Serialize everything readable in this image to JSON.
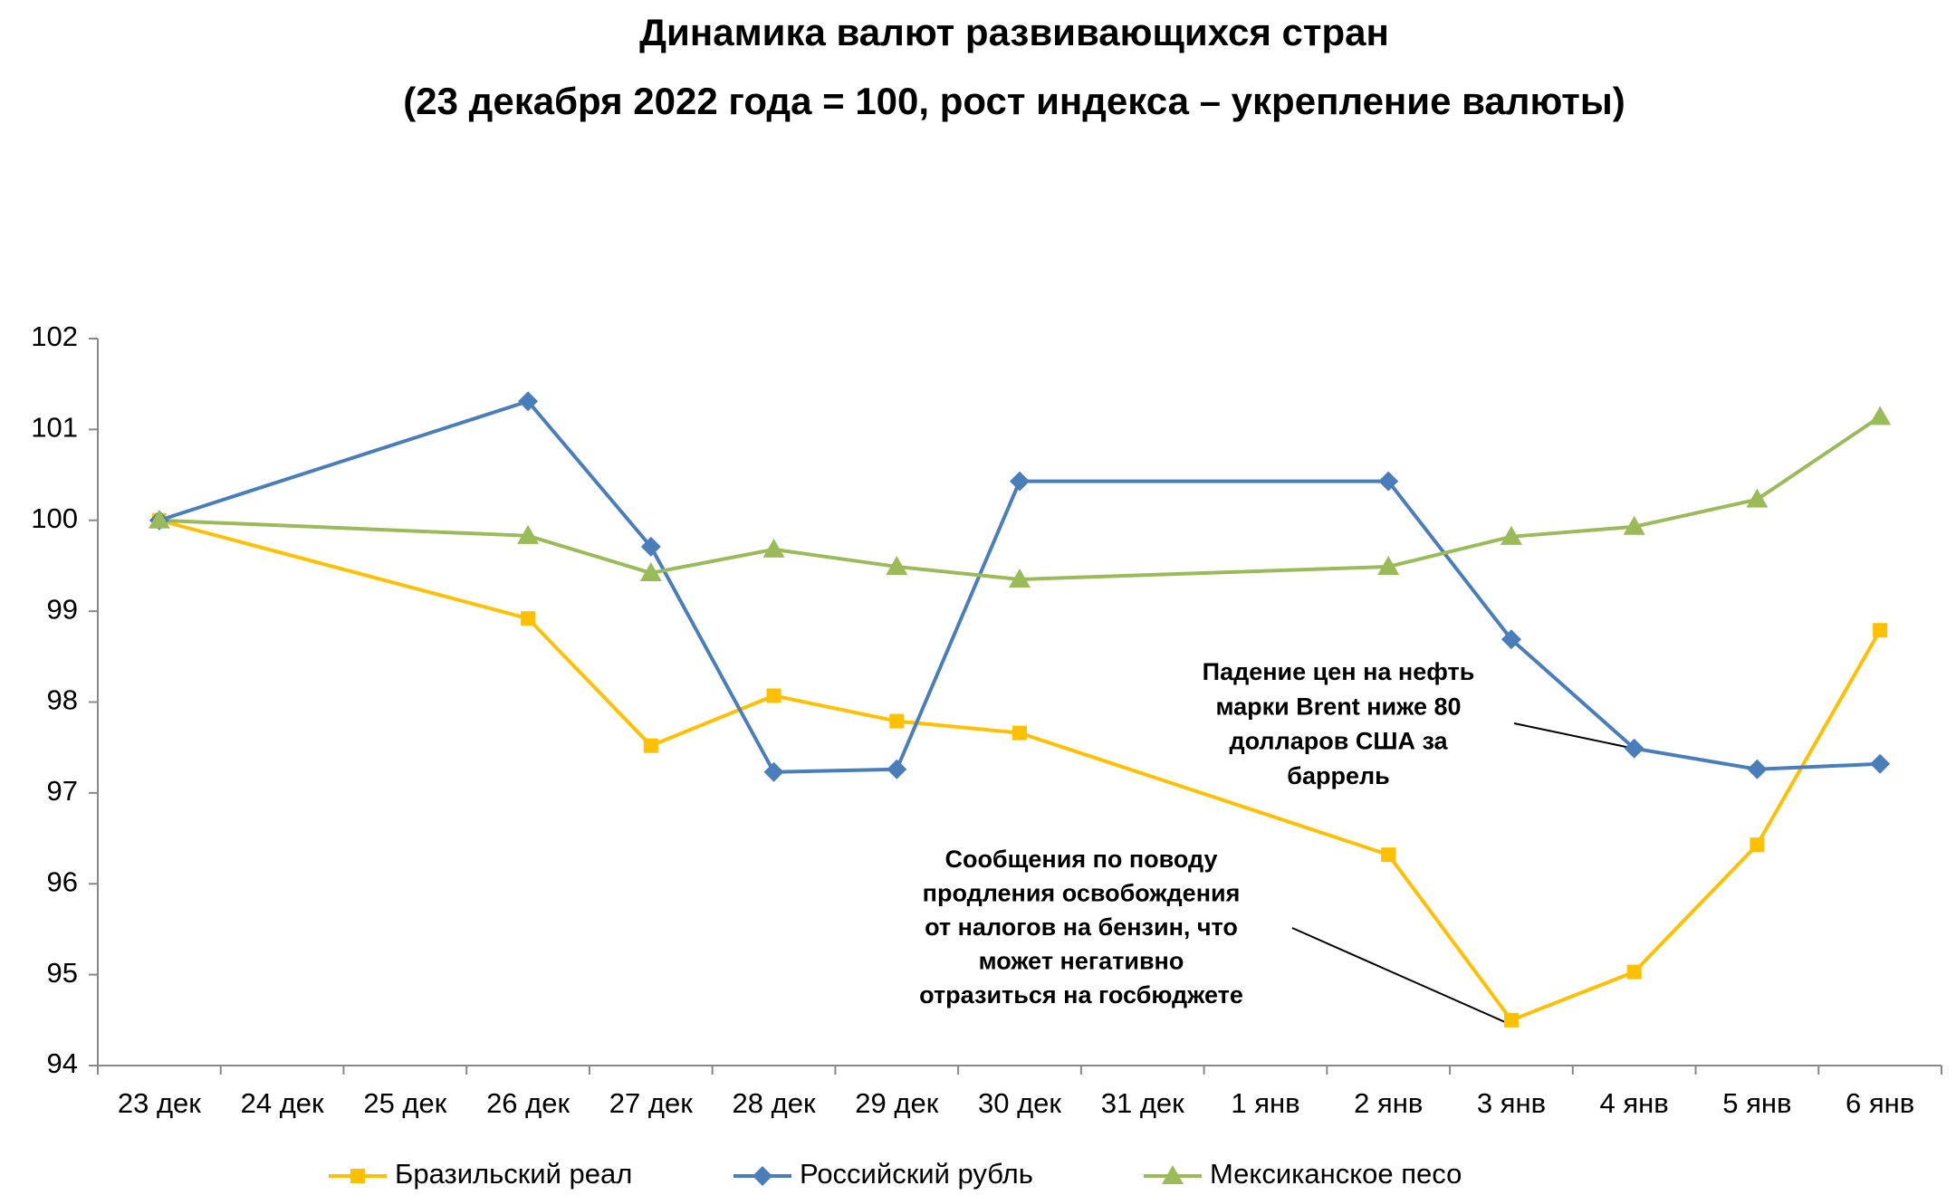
{
  "chart_data": {
    "type": "line",
    "title": "Динамика валют развивающихся стран",
    "subtitle": "(23 декабря 2022 года = 100, рост индекса – укрепление валюты)",
    "categories": [
      "23 дек",
      "24 дек",
      "25 дек",
      "26 дек",
      "27 дек",
      "28 дек",
      "29 дек",
      "30 дек",
      "31 дек",
      "1 янв",
      "2 янв",
      "3 янв",
      "4 янв",
      "5 янв",
      "6 янв"
    ],
    "series": [
      {
        "name": "Бразильский реал",
        "color": "#FFC000",
        "marker": "square",
        "values": [
          100,
          null,
          null,
          98.92,
          97.52,
          98.07,
          97.79,
          97.66,
          null,
          null,
          96.32,
          94.5,
          95.03,
          96.43,
          98.79
        ]
      },
      {
        "name": "Российский рубль",
        "color": "#4A7EBB",
        "marker": "diamond",
        "values": [
          100,
          null,
          null,
          101.31,
          99.71,
          97.23,
          97.26,
          100.43,
          null,
          null,
          100.43,
          98.69,
          97.49,
          97.26,
          97.32
        ]
      },
      {
        "name": "Мексиканское песо",
        "color": "#9BBB59",
        "marker": "triangle",
        "values": [
          100,
          null,
          null,
          99.83,
          99.42,
          99.68,
          99.49,
          99.35,
          null,
          null,
          99.49,
          99.82,
          99.93,
          100.23,
          101.14
        ]
      }
    ],
    "ylim": [
      94,
      102
    ],
    "yticks": [
      94,
      95,
      96,
      97,
      98,
      99,
      100,
      101,
      102
    ],
    "legend": "bottom",
    "annotations": [
      {
        "lines": [
          "Падение цен на нефть",
          "марки Brent ниже 80",
          "долларов США за",
          "баррель"
        ]
      },
      {
        "lines": [
          "Сообщения по поводу",
          "продления освобождения",
          "от налогов на бензин, что",
          "может негативно",
          "отразиться на госбюджете"
        ]
      }
    ]
  }
}
